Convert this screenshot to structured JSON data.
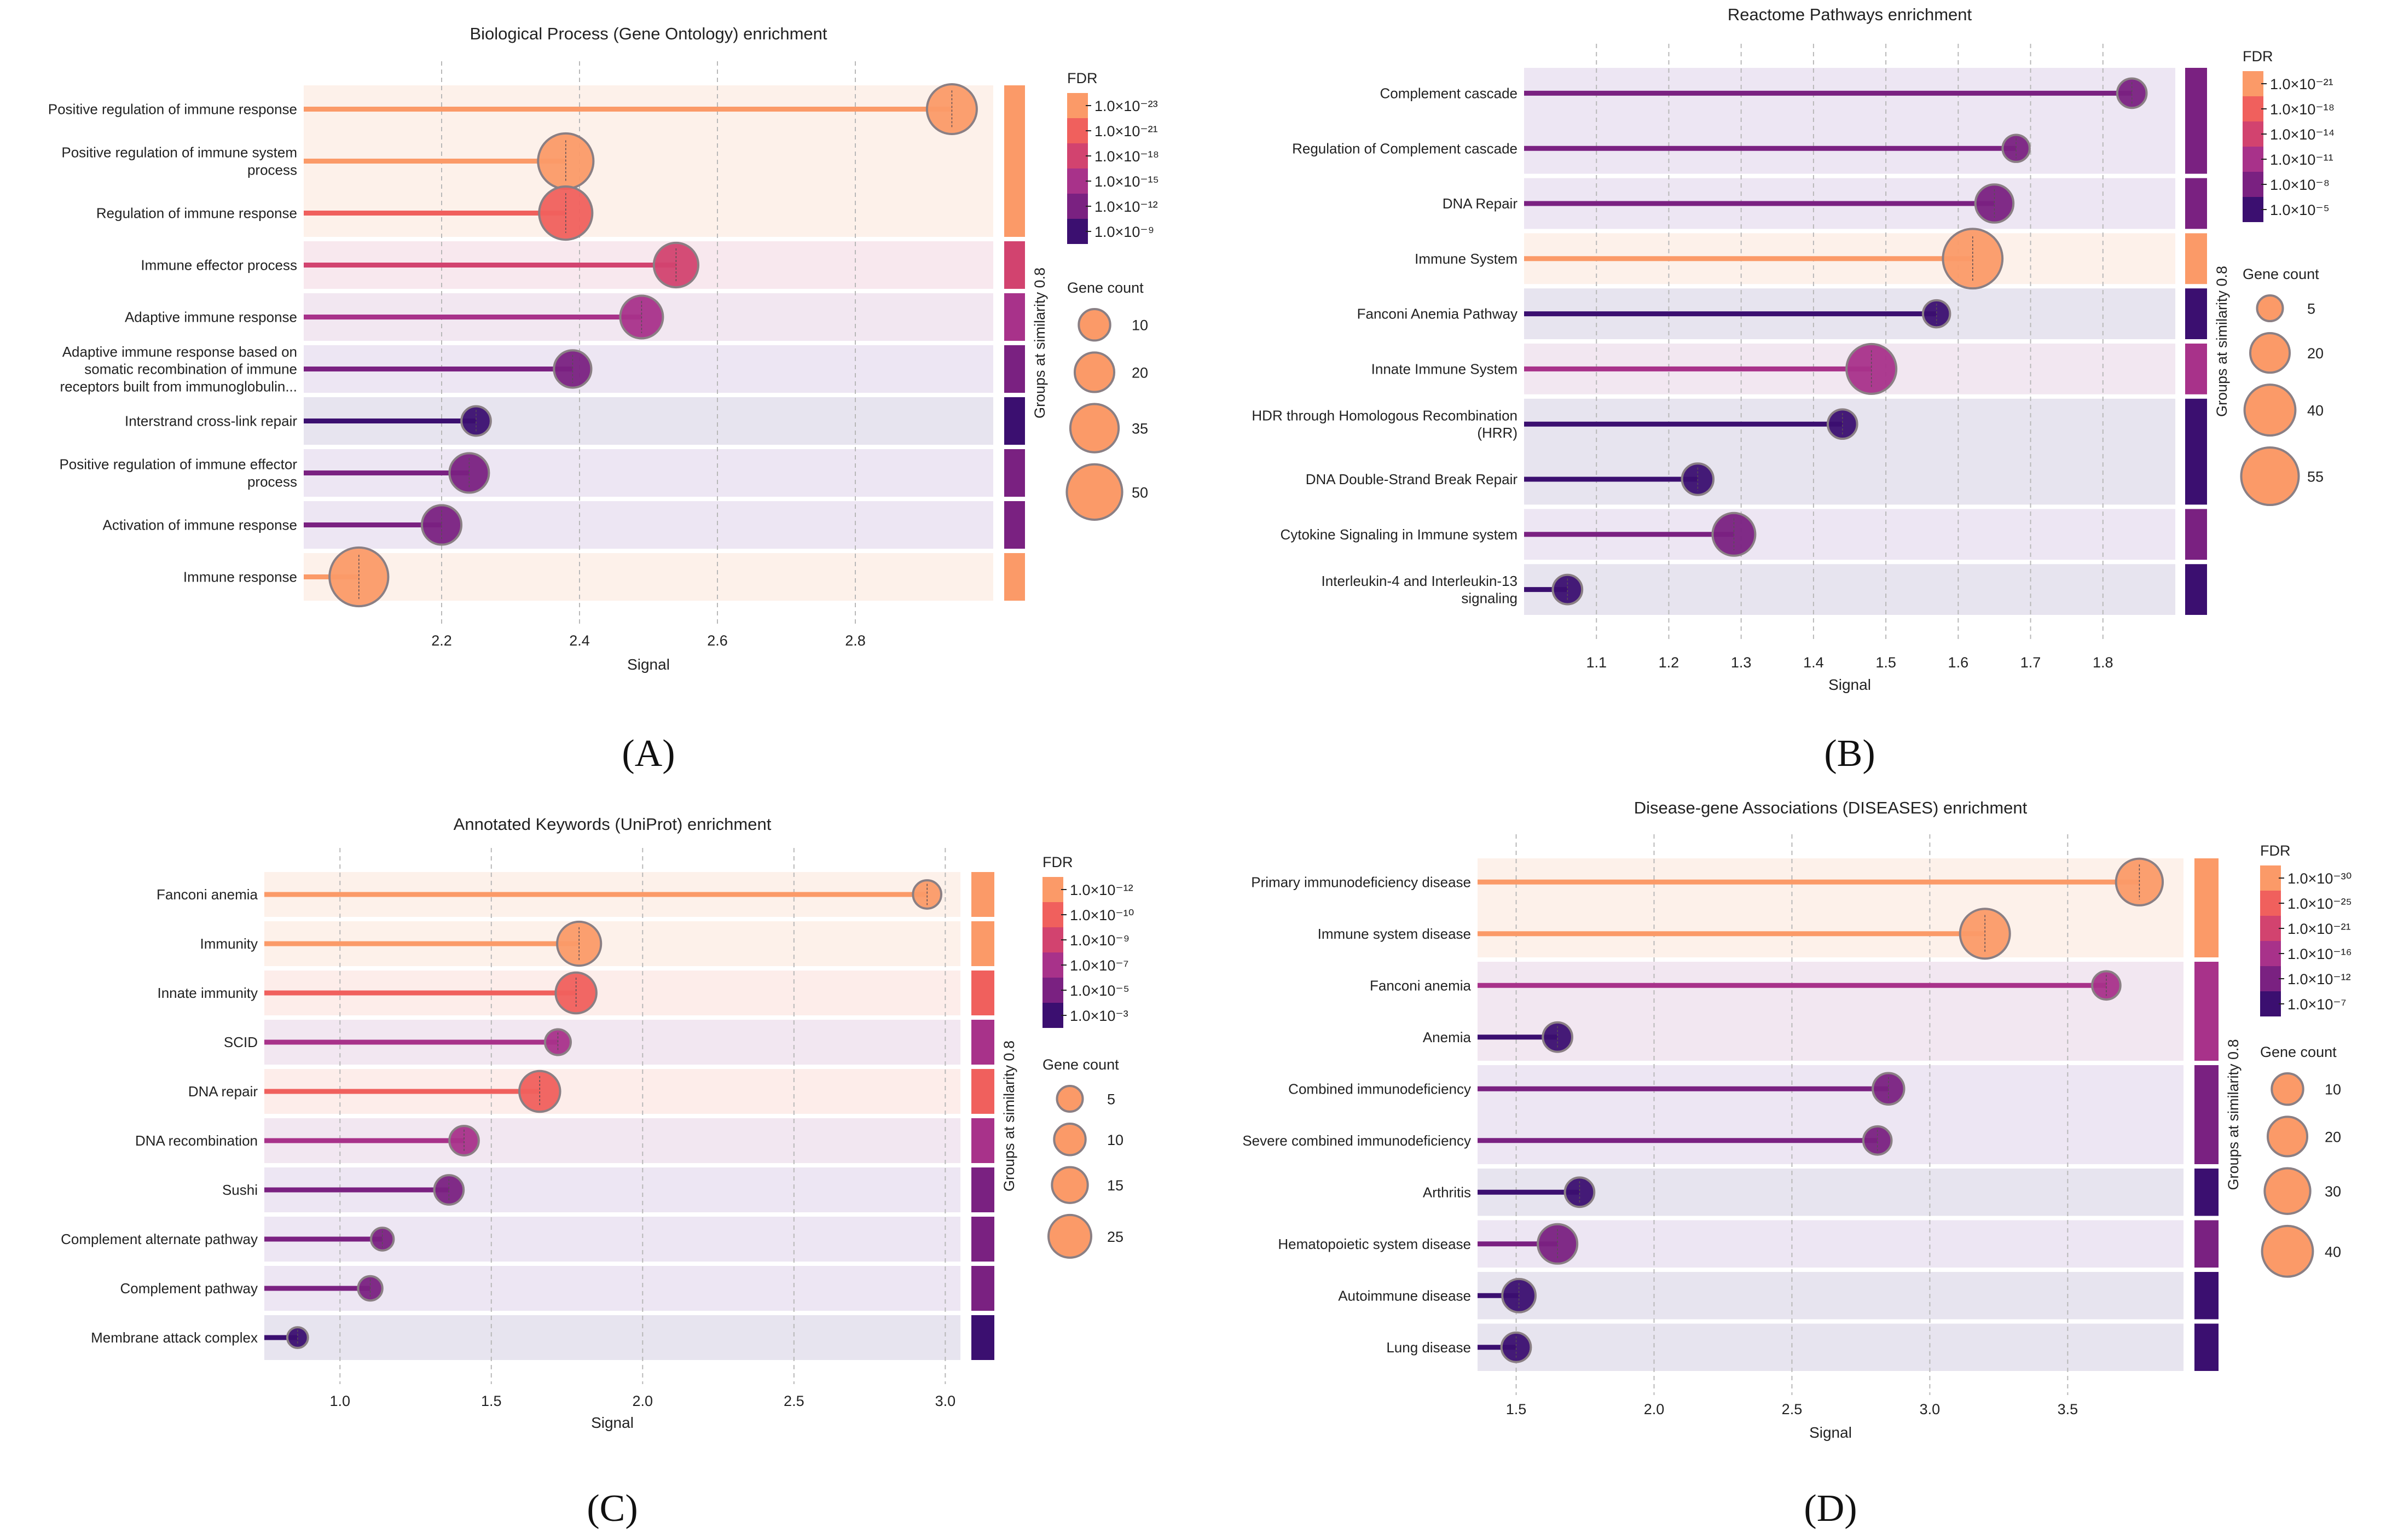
{
  "legend_titles": {
    "fdr": "FDR",
    "gene_count": "Gene count",
    "groups": "Groups at similarity 0.8"
  },
  "colors": {
    "fdr_scale": [
      "#fb9a68",
      "#f0605d",
      "#d2436f",
      "#a8328a",
      "#7a2181",
      "#3b0f70"
    ]
  },
  "chart_data": [
    {
      "type": "lollipop",
      "panel_label": "(A)",
      "title": "Biological Process (Gene Ontology) enrichment",
      "xlabel": "Signal",
      "xlim": [
        2.0,
        3.0
      ],
      "xticks": [
        2.2,
        2.4,
        2.6,
        2.8
      ],
      "xtick_labels": [
        "2.2",
        "2.4",
        "2.6",
        "2.8"
      ],
      "fdr_legend": [
        "1.0×10⁻²³",
        "1.0×10⁻²¹",
        "1.0×10⁻¹⁸",
        "1.0×10⁻¹⁵",
        "1.0×10⁻¹²",
        "1.0×10⁻⁹"
      ],
      "size_legend": [
        {
          "label": "10",
          "value": 10
        },
        {
          "label": "20",
          "value": 20
        },
        {
          "label": "35",
          "value": 35
        },
        {
          "label": "50",
          "value": 50
        }
      ],
      "groups": [
        {
          "rows": 3,
          "color": 0
        },
        {
          "rows": 1,
          "color": 2
        },
        {
          "rows": 1,
          "color": 3
        },
        {
          "rows": 1,
          "color": 4
        },
        {
          "rows": 1,
          "color": 5
        },
        {
          "rows": 1,
          "color": 4
        },
        {
          "rows": 1,
          "color": 4
        },
        {
          "rows": 1,
          "color": 0
        }
      ],
      "terms": [
        {
          "label": "Positive regulation of immune response",
          "signal": 2.94,
          "gene_count": 38,
          "color": 0
        },
        {
          "label": "Positive regulation of immune system\nprocess",
          "signal": 2.38,
          "gene_count": 50,
          "color": 0
        },
        {
          "label": "Regulation of immune response",
          "signal": 2.38,
          "gene_count": 45,
          "color": 1
        },
        {
          "label": "Immune effector process",
          "signal": 2.54,
          "gene_count": 28,
          "color": 2
        },
        {
          "label": "Adaptive immune response",
          "signal": 2.49,
          "gene_count": 25,
          "color": 3
        },
        {
          "label": "Adaptive immune response based on\nsomatic recombination of immune\nreceptors built from immunoglobulin...",
          "signal": 2.39,
          "gene_count": 17,
          "color": 4
        },
        {
          "label": "Interstrand cross-link repair",
          "signal": 2.25,
          "gene_count": 8,
          "color": 5
        },
        {
          "label": "Positive regulation of immune effector\nprocess",
          "signal": 2.24,
          "gene_count": 20,
          "color": 4
        },
        {
          "label": "Activation of immune response",
          "signal": 2.2,
          "gene_count": 20,
          "color": 4
        },
        {
          "label": "Immune response",
          "signal": 2.08,
          "gene_count": 58,
          "color": 0
        }
      ]
    },
    {
      "type": "lollipop",
      "panel_label": "(B)",
      "title": "Reactome Pathways enrichment",
      "xlabel": "Signal",
      "xlim": [
        1.0,
        1.9
      ],
      "xticks": [
        1.1,
        1.2,
        1.3,
        1.4,
        1.5,
        1.6,
        1.7,
        1.8
      ],
      "xtick_labels": [
        "1.1",
        "1.2",
        "1.3",
        "1.4",
        "1.5",
        "1.6",
        "1.7",
        "1.8"
      ],
      "fdr_legend": [
        "1.0×10⁻²¹",
        "1.0×10⁻¹⁸",
        "1.0×10⁻¹⁴",
        "1.0×10⁻¹¹",
        "1.0×10⁻⁸",
        "1.0×10⁻⁵"
      ],
      "size_legend": [
        {
          "label": "5",
          "value": 5
        },
        {
          "label": "20",
          "value": 20
        },
        {
          "label": "40",
          "value": 40
        },
        {
          "label": "55",
          "value": 55
        }
      ],
      "groups": [
        {
          "rows": 2,
          "color": 4
        },
        {
          "rows": 1,
          "color": 4
        },
        {
          "rows": 1,
          "color": 0
        },
        {
          "rows": 1,
          "color": 5
        },
        {
          "rows": 1,
          "color": 3
        },
        {
          "rows": 2,
          "color": 5
        },
        {
          "rows": 1,
          "color": 4
        },
        {
          "rows": 1,
          "color": 5
        }
      ],
      "terms": [
        {
          "label": "Complement cascade",
          "signal": 1.84,
          "gene_count": 8,
          "color": 4
        },
        {
          "label": "Regulation of Complement cascade",
          "signal": 1.68,
          "gene_count": 6,
          "color": 4
        },
        {
          "label": "DNA Repair",
          "signal": 1.65,
          "gene_count": 18,
          "color": 4
        },
        {
          "label": "Immune System",
          "signal": 1.62,
          "gene_count": 60,
          "color": 0
        },
        {
          "label": "Fanconi Anemia Pathway",
          "signal": 1.57,
          "gene_count": 6,
          "color": 5
        },
        {
          "label": "Innate Immune System",
          "signal": 1.48,
          "gene_count": 38,
          "color": 3
        },
        {
          "label": "HDR through Homologous Recombination\n(HRR)",
          "signal": 1.44,
          "gene_count": 8,
          "color": 5
        },
        {
          "label": "DNA Double-Strand Break Repair",
          "signal": 1.24,
          "gene_count": 10,
          "color": 5
        },
        {
          "label": "Cytokine Signaling in Immune system",
          "signal": 1.29,
          "gene_count": 25,
          "color": 4
        },
        {
          "label": "Interleukin-4 and Interleukin-13\nsignaling",
          "signal": 1.06,
          "gene_count": 8,
          "color": 5
        }
      ]
    },
    {
      "type": "lollipop",
      "panel_label": "(C)",
      "title": "Annotated Keywords (UniProt) enrichment",
      "xlabel": "Signal",
      "xlim": [
        0.75,
        3.05
      ],
      "xticks": [
        1.0,
        1.5,
        2.0,
        2.5,
        3.0
      ],
      "xtick_labels": [
        "1.0",
        "1.5",
        "2.0",
        "2.5",
        "3.0"
      ],
      "fdr_legend": [
        "1.0×10⁻¹²",
        "1.0×10⁻¹⁰",
        "1.0×10⁻⁹",
        "1.0×10⁻⁷",
        "1.0×10⁻⁵",
        "1.0×10⁻³"
      ],
      "size_legend": [
        {
          "label": "5",
          "value": 5
        },
        {
          "label": "10",
          "value": 10
        },
        {
          "label": "15",
          "value": 15
        },
        {
          "label": "25",
          "value": 25
        }
      ],
      "groups": [
        {
          "rows": 1,
          "color": 0
        },
        {
          "rows": 1,
          "color": 0
        },
        {
          "rows": 1,
          "color": 1
        },
        {
          "rows": 1,
          "color": 3
        },
        {
          "rows": 1,
          "color": 1
        },
        {
          "rows": 1,
          "color": 3
        },
        {
          "rows": 1,
          "color": 4
        },
        {
          "rows": 1,
          "color": 4
        },
        {
          "rows": 1,
          "color": 4
        },
        {
          "rows": 1,
          "color": 5
        }
      ],
      "terms": [
        {
          "label": "Fanconi anemia",
          "signal": 2.94,
          "gene_count": 7,
          "color": 0
        },
        {
          "label": "Immunity",
          "signal": 1.79,
          "gene_count": 27,
          "color": 0
        },
        {
          "label": "Innate immunity",
          "signal": 1.78,
          "gene_count": 22,
          "color": 1
        },
        {
          "label": "SCID",
          "signal": 1.72,
          "gene_count": 5,
          "color": 3
        },
        {
          "label": "DNA repair",
          "signal": 1.66,
          "gene_count": 22,
          "color": 1
        },
        {
          "label": "DNA recombination",
          "signal": 1.41,
          "gene_count": 8,
          "color": 3
        },
        {
          "label": "Sushi",
          "signal": 1.36,
          "gene_count": 8,
          "color": 4
        },
        {
          "label": "Complement alternate pathway",
          "signal": 1.14,
          "gene_count": 3,
          "color": 4
        },
        {
          "label": "Complement pathway",
          "signal": 1.1,
          "gene_count": 4,
          "color": 4
        },
        {
          "label": "Membrane attack complex",
          "signal": 0.86,
          "gene_count": 2,
          "color": 5
        }
      ]
    },
    {
      "type": "lollipop",
      "panel_label": "(D)",
      "title": "Disease-gene Associations (DISEASES) enrichment",
      "xlabel": "Signal",
      "xlim": [
        1.36,
        3.92
      ],
      "xticks": [
        1.5,
        2.0,
        2.5,
        3.0,
        3.5
      ],
      "xtick_labels": [
        "1.5",
        "2.0",
        "2.5",
        "3.0",
        "3.5"
      ],
      "fdr_legend": [
        "1.0×10⁻³⁰",
        "1.0×10⁻²⁵",
        "1.0×10⁻²¹",
        "1.0×10⁻¹⁶",
        "1.0×10⁻¹²",
        "1.0×10⁻⁷"
      ],
      "size_legend": [
        {
          "label": "10",
          "value": 10
        },
        {
          "label": "20",
          "value": 20
        },
        {
          "label": "30",
          "value": 30
        },
        {
          "label": "40",
          "value": 40
        }
      ],
      "groups": [
        {
          "rows": 2,
          "color": 0
        },
        {
          "rows": 2,
          "color": 3
        },
        {
          "rows": 2,
          "color": 4
        },
        {
          "rows": 1,
          "color": 5
        },
        {
          "rows": 1,
          "color": 4
        },
        {
          "rows": 1,
          "color": 5
        },
        {
          "rows": 1,
          "color": 5
        }
      ],
      "terms": [
        {
          "label": "Primary immunodeficiency disease",
          "signal": 3.76,
          "gene_count": 32,
          "color": 0
        },
        {
          "label": "Immune system disease",
          "signal": 3.2,
          "gene_count": 38,
          "color": 0
        },
        {
          "label": "Fanconi anemia",
          "signal": 3.64,
          "gene_count": 7,
          "color": 3
        },
        {
          "label": "Anemia",
          "signal": 1.65,
          "gene_count": 8,
          "color": 5
        },
        {
          "label": "Combined immunodeficiency",
          "signal": 2.85,
          "gene_count": 10,
          "color": 4
        },
        {
          "label": "Severe combined immunodeficiency",
          "signal": 2.81,
          "gene_count": 7,
          "color": 4
        },
        {
          "label": "Arthritis",
          "signal": 1.73,
          "gene_count": 8,
          "color": 5
        },
        {
          "label": "Hematopoietic system disease",
          "signal": 1.65,
          "gene_count": 20,
          "color": 4
        },
        {
          "label": "Autoimmune disease",
          "signal": 1.51,
          "gene_count": 12,
          "color": 5
        },
        {
          "label": "Lung disease",
          "signal": 1.5,
          "gene_count": 8,
          "color": 5
        }
      ]
    }
  ]
}
